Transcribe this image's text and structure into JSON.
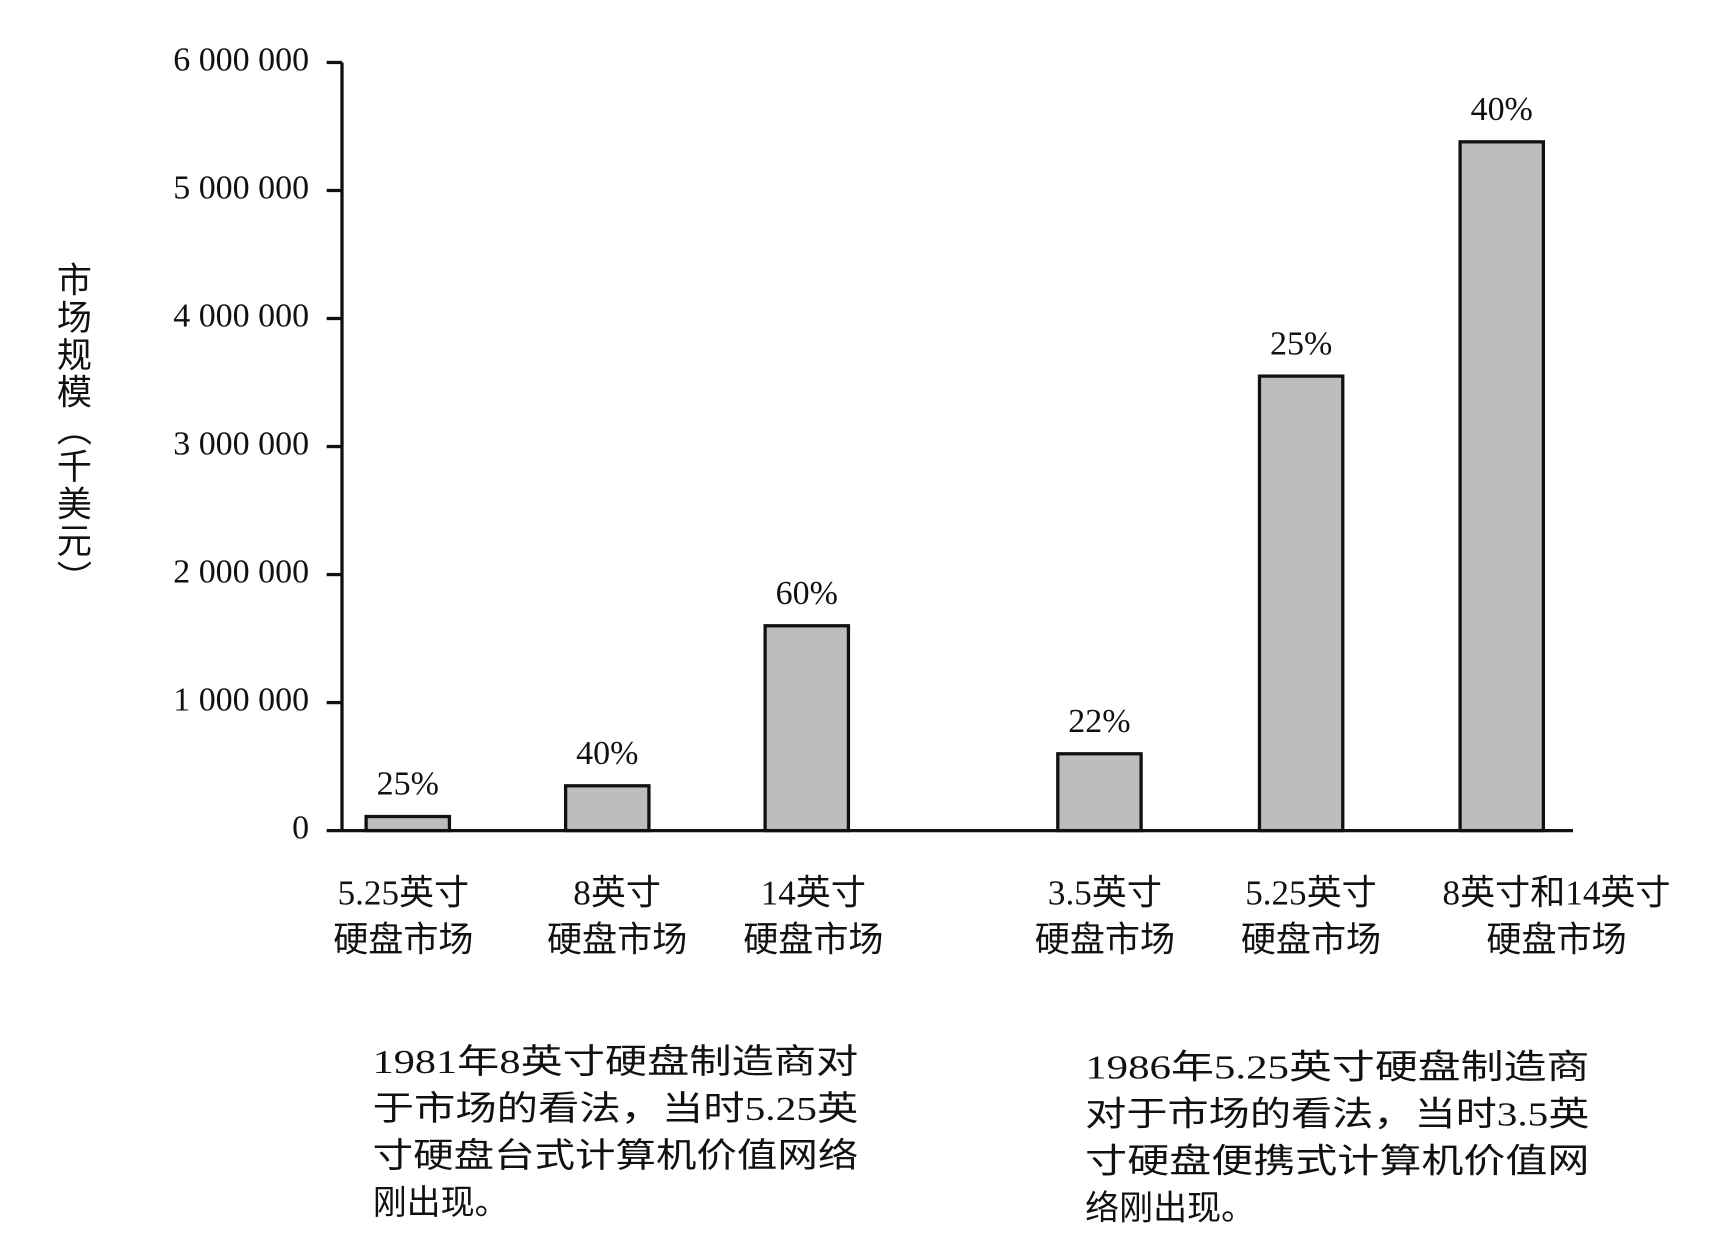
{
  "chart_data": {
    "type": "bar",
    "y_label": "市场规模（千美元）",
    "categories": [
      [
        "5.25英寸",
        "硬盘市场"
      ],
      [
        "8英寸",
        "硬盘市场"
      ],
      [
        "14英寸",
        "硬盘市场"
      ],
      [
        "3.5英寸",
        "硬盘市场"
      ],
      [
        "5.25英寸",
        "硬盘市场"
      ],
      [
        "8英寸和14英寸",
        "硬盘市场"
      ]
    ],
    "values": [
      110000,
      350000,
      1600000,
      600000,
      3550000,
      5380000
    ],
    "annotations": [
      "25%",
      "40%",
      "60%",
      "22%",
      "25%",
      "40%"
    ],
    "color": "#bdbdbd",
    "ylim": [
      0,
      6000000
    ],
    "yticks": [
      0,
      {
        "value": 1000000,
        "label": "1 000 000"
      },
      {
        "value": 2000000,
        "label": "2 000 000"
      },
      {
        "value": 3000000,
        "label": "3 000 000"
      },
      {
        "value": 4000000,
        "label": "4 000 000"
      },
      {
        "value": 5000000,
        "label": "5 000 000"
      },
      {
        "value": 6000000,
        "label": "6 000 000"
      }
    ],
    "captions": [
      [
        "1981年8英寸硬盘制造商对",
        "于市场的看法，当时5.25英",
        "寸硬盘台式计算机价值网络",
        "刚出现。"
      ],
      [
        "1986年5.25英寸硬盘制造商",
        "对于市场的看法，当时3.5英",
        "寸硬盘便携式计算机价值网",
        "络刚出现。"
      ]
    ]
  }
}
